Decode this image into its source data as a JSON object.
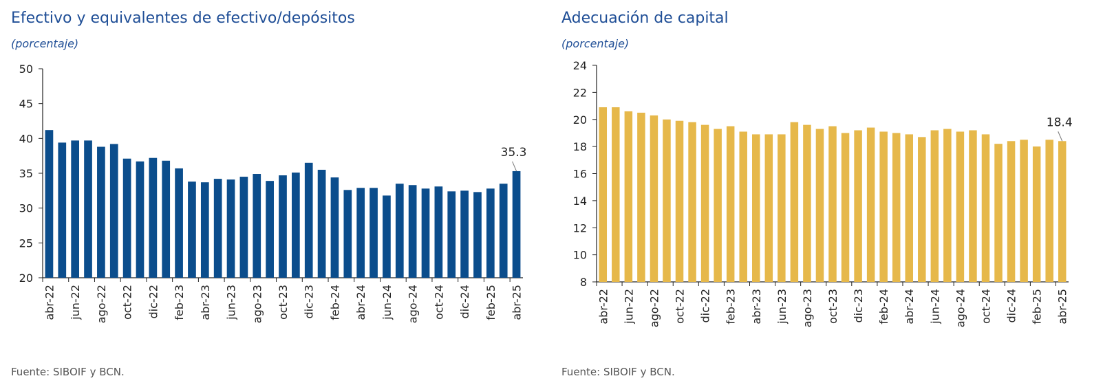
{
  "chart_data": [
    {
      "type": "bar",
      "title": "Efectivo y equivalentes de efectivo/depósitos",
      "subtitle": "(porcentaje)",
      "source": "Fuente: SIBOIF y BCN.",
      "color": "#0b4d8c",
      "ylim": [
        20,
        50
      ],
      "yticks": [
        20,
        25,
        30,
        35,
        40,
        45,
        50
      ],
      "grid": false,
      "categories": [
        "abr-22",
        "may-22",
        "jun-22",
        "jul-22",
        "ago-22",
        "sep-22",
        "oct-22",
        "nov-22",
        "dic-22",
        "ene-23",
        "feb-23",
        "mar-23",
        "abr-23",
        "may-23",
        "jun-23",
        "jul-23",
        "ago-23",
        "sep-23",
        "oct-23",
        "nov-23",
        "dic-23",
        "ene-24",
        "feb-24",
        "mar-24",
        "abr-24",
        "may-24",
        "jun-24",
        "jul-24",
        "ago-24",
        "sep-24",
        "oct-24",
        "nov-24",
        "dic-24",
        "ene-25",
        "feb-25",
        "mar-25",
        "abr-25"
      ],
      "xtick_labels": [
        "abr-22",
        "jun-22",
        "ago-22",
        "oct-22",
        "dic-22",
        "feb-23",
        "abr-23",
        "jun-23",
        "ago-23",
        "oct-23",
        "dic-23",
        "feb-24",
        "abr-24",
        "jun-24",
        "ago-24",
        "oct-24",
        "dic-24",
        "feb-25",
        "abr-25"
      ],
      "values": [
        41.2,
        39.4,
        39.7,
        39.7,
        38.8,
        39.2,
        37.1,
        36.7,
        37.2,
        36.8,
        35.7,
        33.8,
        33.7,
        34.2,
        34.1,
        34.5,
        34.9,
        33.9,
        34.7,
        35.1,
        36.5,
        35.5,
        34.4,
        32.6,
        32.9,
        32.9,
        31.8,
        33.5,
        33.3,
        32.8,
        33.1,
        32.4,
        32.5,
        32.3,
        32.8,
        33.5,
        35.3
      ],
      "annotation": {
        "label": "35.3",
        "category": "abr-25"
      }
    },
    {
      "type": "bar",
      "title": "Adecuación de capital",
      "subtitle": "(porcentaje)",
      "source": "Fuente: SIBOIF y BCN.",
      "color": "#e6b84a",
      "ylim": [
        8,
        24
      ],
      "yticks": [
        8,
        10,
        12,
        14,
        16,
        18,
        20,
        22,
        24
      ],
      "grid": false,
      "categories": [
        "abr-22",
        "may-22",
        "jun-22",
        "jul-22",
        "ago-22",
        "sep-22",
        "oct-22",
        "nov-22",
        "dic-22",
        "ene-23",
        "feb-23",
        "mar-23",
        "abr-23",
        "may-23",
        "jun-23",
        "jul-23",
        "ago-23",
        "sep-23",
        "oct-23",
        "nov-23",
        "dic-23",
        "ene-24",
        "feb-24",
        "mar-24",
        "abr-24",
        "may-24",
        "jun-24",
        "jul-24",
        "ago-24",
        "sep-24",
        "oct-24",
        "nov-24",
        "dic-24",
        "ene-25",
        "feb-25",
        "mar-25",
        "abr-25"
      ],
      "xtick_labels": [
        "abr-22",
        "jun-22",
        "ago-22",
        "oct-22",
        "dic-22",
        "feb-23",
        "abr-23",
        "jun-23",
        "ago-23",
        "oct-23",
        "dic-23",
        "feb-24",
        "abr-24",
        "jun-24",
        "ago-24",
        "oct-24",
        "dic-24",
        "feb-25",
        "abr-25"
      ],
      "values": [
        20.9,
        20.9,
        20.6,
        20.5,
        20.3,
        20.0,
        19.9,
        19.8,
        19.6,
        19.3,
        19.5,
        19.1,
        18.9,
        18.9,
        18.9,
        19.8,
        19.6,
        19.3,
        19.5,
        19.0,
        19.2,
        19.4,
        19.1,
        19.0,
        18.9,
        18.7,
        19.2,
        19.3,
        19.1,
        19.2,
        18.9,
        18.2,
        18.4,
        18.5,
        18.0,
        18.5,
        18.4
      ],
      "annotation": {
        "label": "18.4",
        "category": "abr-25"
      }
    }
  ]
}
